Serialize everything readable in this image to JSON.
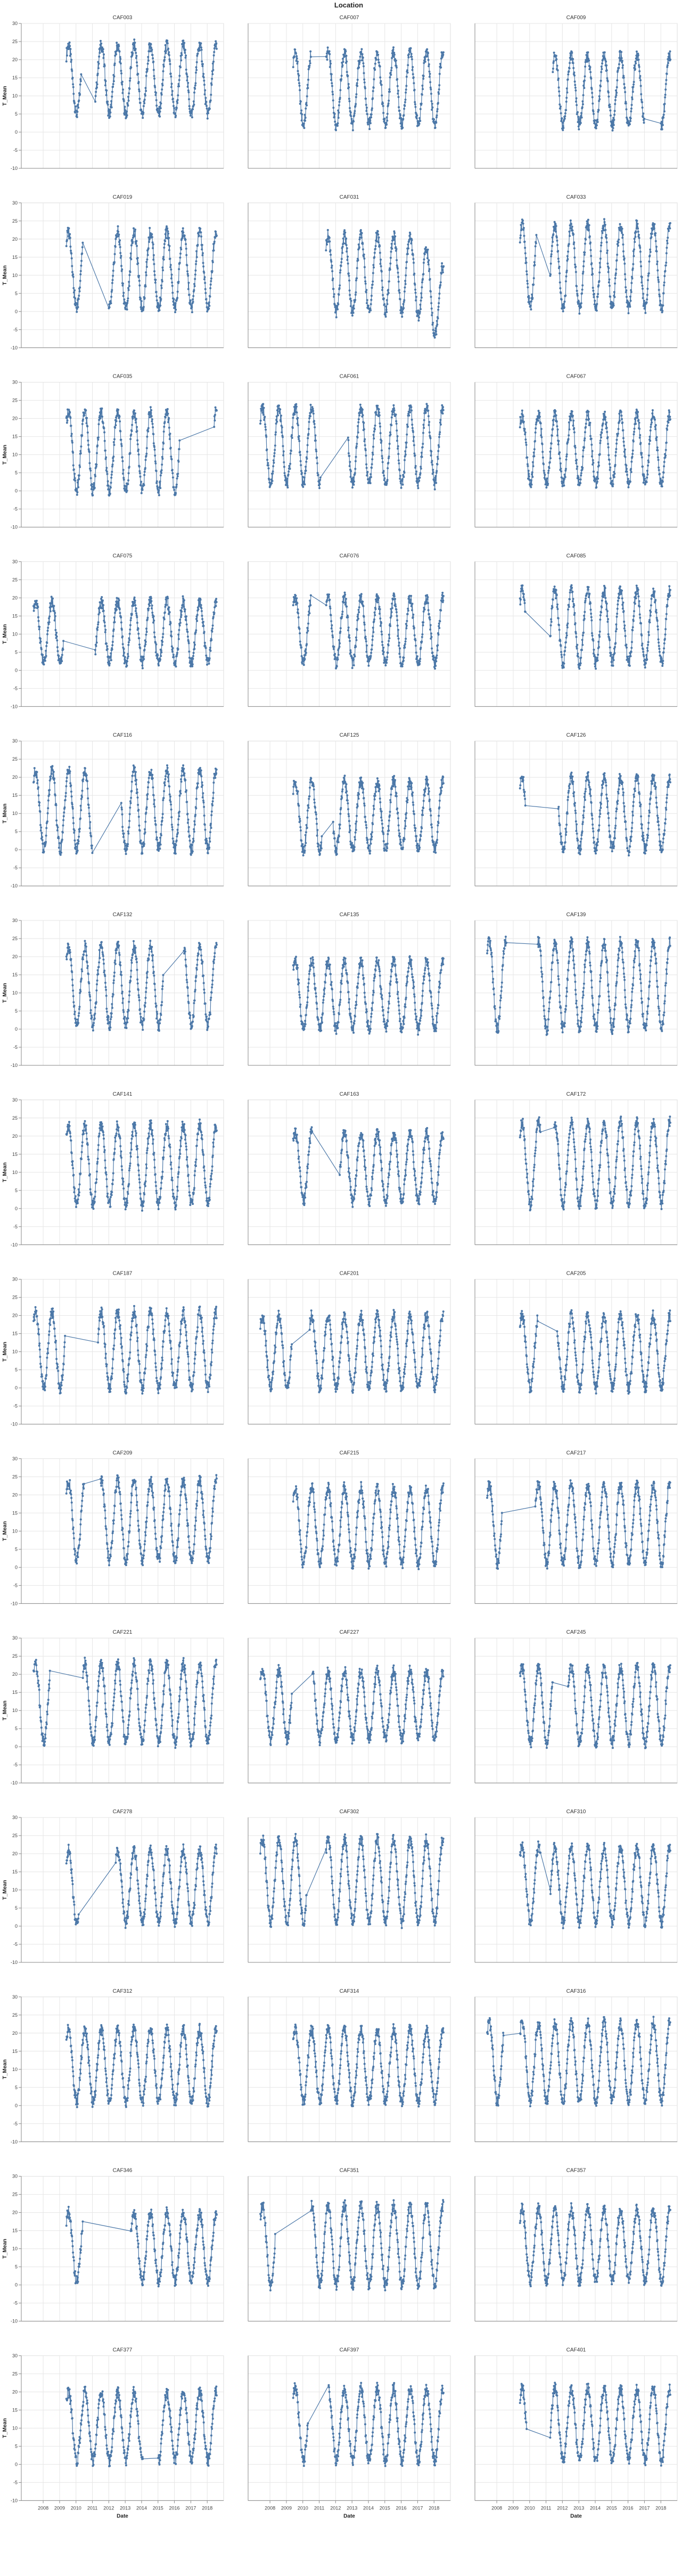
{
  "figure": {
    "facet_title": "Location",
    "ylabel": "T_Mean",
    "xlabel": "Date"
  },
  "chart_data": {
    "type": "line",
    "facet_field": "Location",
    "x_field": "Date",
    "y_field": "T_Mean",
    "xlim": [
      "2006-09-01",
      "2019-01-01"
    ],
    "ylim": [
      -10,
      30
    ],
    "yticks": [
      -10,
      -5,
      0,
      5,
      10,
      15,
      20,
      25,
      30
    ],
    "xticks": [
      "2008",
      "2009",
      "2010",
      "2011",
      "2012",
      "2013",
      "2014",
      "2015",
      "2016",
      "2017",
      "2018"
    ],
    "grid": true,
    "series_color": "#4c78a8",
    "panels": [
      {
        "title": "CAF003",
        "start": "2009-06-01",
        "end": "2018-08-01",
        "amp": [
          5,
          24
        ],
        "gaps": [
          [
            "2010-05-01",
            "2011-03-01"
          ]
        ]
      },
      {
        "title": "CAF007",
        "start": "2009-06-01",
        "end": "2018-08-01",
        "amp": [
          2,
          22
        ],
        "gaps": [
          [
            "2010-07-01",
            "2011-06-01"
          ]
        ]
      },
      {
        "title": "CAF009",
        "start": "2011-06-01",
        "end": "2018-08-01",
        "amp": [
          2,
          21
        ],
        "gaps": [
          [
            "2017-01-01",
            "2018-01-01"
          ]
        ]
      },
      {
        "title": "CAF019",
        "start": "2009-06-01",
        "end": "2018-08-01",
        "amp": [
          1,
          22
        ],
        "gaps": [
          [
            "2010-06-01",
            "2012-01-01"
          ]
        ]
      },
      {
        "title": "CAF031",
        "start": "2011-06-01",
        "end": "2018-08-01",
        "amp": [
          0,
          21
        ],
        "gaps": [],
        "drift": -9
      },
      {
        "title": "CAF033",
        "start": "2009-06-01",
        "end": "2018-08-01",
        "amp": [
          1,
          24
        ],
        "gaps": [
          [
            "2010-06-01",
            "2011-04-01"
          ]
        ]
      },
      {
        "title": "CAF035",
        "start": "2009-06-01",
        "end": "2018-08-01",
        "amp": [
          0,
          22
        ],
        "gaps": [
          [
            "2016-05-01",
            "2018-06-01"
          ]
        ]
      },
      {
        "title": "CAF061",
        "start": "2007-06-01",
        "end": "2018-08-01",
        "amp": [
          2,
          23
        ],
        "gaps": [
          [
            "2011-02-01",
            "2012-10-01"
          ]
        ]
      },
      {
        "title": "CAF067",
        "start": "2009-06-01",
        "end": "2018-08-01",
        "amp": [
          2,
          21
        ],
        "gaps": []
      },
      {
        "title": "CAF075",
        "start": "2007-06-01",
        "end": "2018-08-01",
        "amp": [
          2,
          19
        ],
        "gaps": [
          [
            "2009-04-01",
            "2011-03-01"
          ]
        ]
      },
      {
        "title": "CAF076",
        "start": "2009-06-01",
        "end": "2018-08-01",
        "amp": [
          2,
          20
        ],
        "gaps": [
          [
            "2010-07-01",
            "2011-06-01"
          ]
        ]
      },
      {
        "title": "CAF085",
        "start": "2009-06-01",
        "end": "2018-08-01",
        "amp": [
          2,
          22
        ],
        "gaps": [
          [
            "2009-10-01",
            "2011-04-01"
          ]
        ]
      },
      {
        "title": "CAF116",
        "start": "2007-06-01",
        "end": "2018-08-01",
        "amp": [
          0,
          22
        ],
        "gaps": [
          [
            "2011-01-01",
            "2012-10-01"
          ]
        ]
      },
      {
        "title": "CAF125",
        "start": "2009-06-01",
        "end": "2018-08-01",
        "amp": [
          0,
          19
        ],
        "gaps": [
          [
            "2011-03-01",
            "2011-11-01"
          ]
        ]
      },
      {
        "title": "CAF126",
        "start": "2009-06-01",
        "end": "2018-08-01",
        "amp": [
          0,
          20
        ],
        "gaps": [
          [
            "2009-10-01",
            "2011-10-01"
          ]
        ]
      },
      {
        "title": "CAF132",
        "start": "2009-06-01",
        "end": "2018-08-01",
        "amp": [
          1,
          23
        ],
        "gaps": [
          [
            "2015-05-01",
            "2016-08-01"
          ]
        ]
      },
      {
        "title": "CAF135",
        "start": "2009-06-01",
        "end": "2018-08-01",
        "amp": [
          0,
          19
        ],
        "gaps": []
      },
      {
        "title": "CAF139",
        "start": "2007-06-01",
        "end": "2018-08-01",
        "amp": [
          0,
          24
        ],
        "gaps": [
          [
            "2008-08-01",
            "2010-07-01"
          ]
        ]
      },
      {
        "title": "CAF141",
        "start": "2009-06-01",
        "end": "2018-08-01",
        "amp": [
          1,
          23
        ],
        "gaps": []
      },
      {
        "title": "CAF163",
        "start": "2009-06-01",
        "end": "2018-08-01",
        "amp": [
          2,
          21
        ],
        "gaps": [
          [
            "2010-08-01",
            "2012-04-01"
          ]
        ]
      },
      {
        "title": "CAF172",
        "start": "2009-06-01",
        "end": "2018-08-01",
        "amp": [
          1,
          24
        ],
        "gaps": [
          [
            "2010-09-01",
            "2011-07-01"
          ]
        ]
      },
      {
        "title": "CAF187",
        "start": "2007-06-01",
        "end": "2018-08-01",
        "amp": [
          0,
          21
        ],
        "gaps": [
          [
            "2009-05-01",
            "2011-05-01"
          ]
        ]
      },
      {
        "title": "CAF201",
        "start": "2007-06-01",
        "end": "2018-08-01",
        "amp": [
          0,
          20
        ],
        "gaps": [
          [
            "2009-05-01",
            "2010-06-01"
          ]
        ]
      },
      {
        "title": "CAF205",
        "start": "2009-06-01",
        "end": "2018-08-01",
        "amp": [
          0,
          20
        ],
        "gaps": [
          [
            "2010-07-01",
            "2011-09-01"
          ]
        ]
      },
      {
        "title": "CAF209",
        "start": "2009-06-01",
        "end": "2018-08-01",
        "amp": [
          2,
          24
        ],
        "gaps": [
          [
            "2010-07-01",
            "2011-07-01"
          ]
        ]
      },
      {
        "title": "CAF215",
        "start": "2009-06-01",
        "end": "2018-08-01",
        "amp": [
          1,
          22
        ],
        "gaps": []
      },
      {
        "title": "CAF217",
        "start": "2007-06-01",
        "end": "2018-08-01",
        "amp": [
          1,
          23
        ],
        "gaps": [
          [
            "2008-05-01",
            "2010-05-01"
          ]
        ]
      },
      {
        "title": "CAF221",
        "start": "2007-06-01",
        "end": "2018-08-01",
        "amp": [
          1,
          23
        ],
        "gaps": [
          [
            "2008-06-01",
            "2010-06-01"
          ]
        ]
      },
      {
        "title": "CAF227",
        "start": "2007-06-01",
        "end": "2018-08-01",
        "amp": [
          2,
          21
        ],
        "gaps": [
          [
            "2009-05-01",
            "2010-08-01"
          ]
        ]
      },
      {
        "title": "CAF245",
        "start": "2009-06-01",
        "end": "2018-08-01",
        "amp": [
          1,
          22
        ],
        "gaps": [
          [
            "2011-06-01",
            "2012-05-01"
          ]
        ]
      },
      {
        "title": "CAF278",
        "start": "2009-06-01",
        "end": "2018-08-01",
        "amp": [
          1,
          21
        ],
        "gaps": [
          [
            "2010-03-01",
            "2012-06-01"
          ]
        ]
      },
      {
        "title": "CAF302",
        "start": "2007-06-01",
        "end": "2018-08-01",
        "amp": [
          1,
          24
        ],
        "gaps": [
          [
            "2010-04-01",
            "2011-06-01"
          ]
        ]
      },
      {
        "title": "CAF310",
        "start": "2009-06-01",
        "end": "2018-08-01",
        "amp": [
          1,
          22
        ],
        "gaps": [
          [
            "2010-09-01",
            "2011-04-01"
          ]
        ]
      },
      {
        "title": "CAF312",
        "start": "2009-06-01",
        "end": "2018-08-01",
        "amp": [
          1,
          21
        ],
        "gaps": []
      },
      {
        "title": "CAF314",
        "start": "2009-06-01",
        "end": "2018-08-01",
        "amp": [
          1,
          21
        ],
        "gaps": []
      },
      {
        "title": "CAF316",
        "start": "2007-06-01",
        "end": "2018-08-01",
        "amp": [
          1,
          23
        ],
        "gaps": [
          [
            "2008-06-01",
            "2009-06-01"
          ]
        ]
      },
      {
        "title": "CAF346",
        "start": "2009-06-01",
        "end": "2018-08-01",
        "amp": [
          1,
          20
        ],
        "gaps": [
          [
            "2010-06-01",
            "2013-05-01"
          ]
        ]
      },
      {
        "title": "CAF351",
        "start": "2007-06-01",
        "end": "2018-08-01",
        "amp": [
          0,
          22
        ],
        "gaps": [
          [
            "2008-05-01",
            "2010-07-01"
          ]
        ]
      },
      {
        "title": "CAF357",
        "start": "2009-06-01",
        "end": "2018-08-01",
        "amp": [
          1,
          21
        ],
        "gaps": []
      },
      {
        "title": "CAF377",
        "start": "2009-06-01",
        "end": "2018-08-01",
        "amp": [
          1,
          20
        ],
        "gaps": [
          [
            "2014-02-01",
            "2015-01-01"
          ]
        ]
      },
      {
        "title": "CAF397",
        "start": "2009-06-01",
        "end": "2018-08-01",
        "amp": [
          1,
          21
        ],
        "gaps": [
          [
            "2010-05-01",
            "2011-08-01"
          ]
        ]
      },
      {
        "title": "CAF401",
        "start": "2009-06-01",
        "end": "2018-08-01",
        "amp": [
          1,
          21
        ],
        "gaps": [
          [
            "2009-11-01",
            "2011-04-01"
          ]
        ]
      }
    ]
  }
}
